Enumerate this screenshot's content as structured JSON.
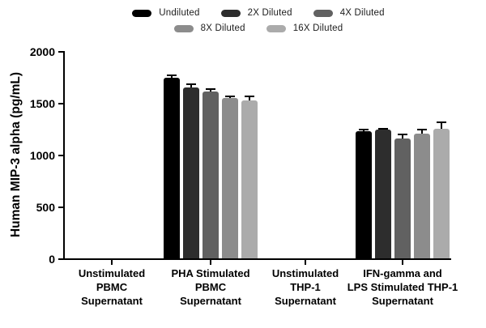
{
  "figure": {
    "background_color": "#ffffff",
    "text_color": "#000000"
  },
  "chart_data": {
    "type": "bar",
    "title": "",
    "xlabel": "",
    "ylabel": "Human MIP-3 alpha (pg/mL)",
    "ylim": [
      0,
      2000
    ],
    "yticks": [
      0,
      500,
      1000,
      1500,
      2000
    ],
    "grid": false,
    "legend_position": "top",
    "error_bars": "sd, upper only, black",
    "categories": [
      "Unstimulated PBMC Supernatant",
      "PHA Stimulated PBMC Supernatant",
      "Unstimulated THP-1 Supernatant",
      "IFN-gamma and LPS Stimulated THP-1 Supernatant"
    ],
    "category_lines": [
      [
        "Unstimulated",
        "PBMC",
        "Supernatant"
      ],
      [
        "PHA Stimulated",
        "PBMC",
        "Supernatant"
      ],
      [
        "Unstimulated",
        "THP-1",
        "Supernatant"
      ],
      [
        "IFN-gamma and",
        "LPS Stimulated THP-1",
        "Supernatant"
      ]
    ],
    "series": [
      {
        "name": "Undiluted",
        "color": "#000000",
        "values": [
          0,
          1740,
          0,
          1230
        ],
        "errors": [
          0,
          25,
          0,
          10
        ]
      },
      {
        "name": "2X Diluted",
        "color": "#2d2d2d",
        "values": [
          0,
          1650,
          0,
          1240
        ],
        "errors": [
          0,
          30,
          0,
          10
        ]
      },
      {
        "name": "4X Diluted",
        "color": "#616161",
        "values": [
          0,
          1610,
          0,
          1160
        ],
        "errors": [
          0,
          25,
          0,
          35
        ]
      },
      {
        "name": "8X Diluted",
        "color": "#8c8c8c",
        "values": [
          0,
          1550,
          0,
          1200
        ],
        "errors": [
          0,
          12,
          0,
          40
        ]
      },
      {
        "name": "16X Diluted",
        "color": "#ababab",
        "values": [
          0,
          1520,
          0,
          1250
        ],
        "errors": [
          0,
          45,
          0,
          60
        ]
      }
    ],
    "legend_rows": [
      [
        "Undiluted",
        "2X Diluted",
        "4X Diluted"
      ],
      [
        "8X Diluted",
        "16X Diluted"
      ]
    ]
  }
}
